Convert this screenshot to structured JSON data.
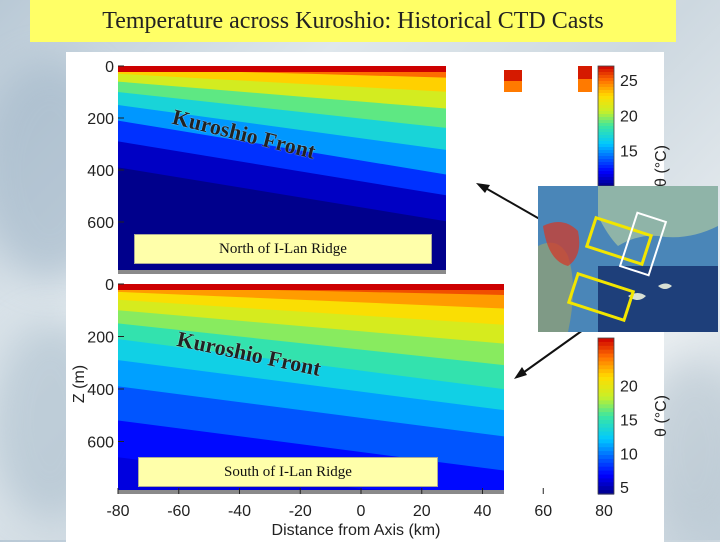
{
  "title": "Temperature across Kuroshio: Historical CTD Casts",
  "panels": {
    "north_label": "North of I-Lan Ridge",
    "south_label": "South of I-Lan Ridge",
    "front_label": "Kuroshio Front"
  },
  "colors": {
    "title_bg": "#ffff66",
    "banner_bg": "#ffffaa",
    "box_outline": "#f2e600"
  },
  "chart_data": [
    {
      "type": "heatmap",
      "panel": "North of I-Lan Ridge",
      "title": "",
      "xlabel": "",
      "ylabel": "",
      "xlim": [
        -80,
        80
      ],
      "ylim": [
        0,
        800
      ],
      "y_inverted": true,
      "y_ticks": [
        0,
        200,
        400,
        600
      ],
      "y_tick_labels": [
        "0",
        "200",
        "400",
        "600"
      ],
      "variable": "temperature",
      "colorbar": {
        "range": [
          10,
          27
        ],
        "ticks": [
          25,
          20,
          15
        ],
        "tick_labels": [
          "25",
          "20",
          "15"
        ],
        "label": "θ (°C)"
      },
      "isotherms": [
        {
          "temp": 26,
          "depth_at": [
            [
              -80,
              10
            ],
            [
              -40,
              20
            ],
            [
              0,
              30
            ],
            [
              40,
              40
            ],
            [
              80,
              50
            ]
          ]
        },
        {
          "temp": 24,
          "depth_at": [
            [
              -80,
              30
            ],
            [
              -40,
              50
            ],
            [
              0,
              70
            ],
            [
              40,
              90
            ],
            [
              80,
              110
            ]
          ]
        },
        {
          "temp": 22,
          "depth_at": [
            [
              -80,
              60
            ],
            [
              -40,
              90
            ],
            [
              0,
              120
            ],
            [
              40,
              150
            ],
            [
              80,
              180
            ]
          ]
        },
        {
          "temp": 20,
          "depth_at": [
            [
              -80,
              100
            ],
            [
              -40,
              140
            ],
            [
              0,
              180
            ],
            [
              40,
              220
            ],
            [
              80,
              260
            ]
          ]
        },
        {
          "temp": 18,
          "depth_at": [
            [
              -80,
              150
            ],
            [
              -40,
              200
            ],
            [
              0,
              250
            ],
            [
              40,
              300
            ],
            [
              80,
              350
            ]
          ]
        },
        {
          "temp": 16,
          "depth_at": [
            [
              -80,
              210
            ],
            [
              -40,
              270
            ],
            [
              0,
              330
            ],
            [
              40,
              390
            ],
            [
              80,
              450
            ]
          ]
        },
        {
          "temp": 14,
          "depth_at": [
            [
              -80,
              290
            ],
            [
              -40,
              350
            ],
            [
              0,
              410
            ],
            [
              40,
              470
            ],
            [
              80,
              530
            ]
          ]
        },
        {
          "temp": 12,
          "depth_at": [
            [
              -80,
              390
            ],
            [
              -40,
              450
            ],
            [
              0,
              510
            ],
            [
              40,
              570
            ],
            [
              80,
              630
            ]
          ]
        },
        {
          "temp": 10,
          "depth_at": [
            [
              -80,
              520
            ],
            [
              -40,
              580
            ],
            [
              0,
              640
            ],
            [
              40,
              700
            ],
            [
              80,
              760
            ]
          ]
        }
      ]
    },
    {
      "type": "heatmap",
      "panel": "South of I-Lan Ridge",
      "title": "",
      "xlabel": "Distance from Axis (km)",
      "ylabel": "Z (m)",
      "xlim": [
        -80,
        80
      ],
      "ylim": [
        0,
        800
      ],
      "y_inverted": true,
      "x_ticks": [
        -80,
        -60,
        -40,
        -20,
        0,
        20,
        40,
        60,
        80
      ],
      "x_tick_labels": [
        "-80",
        "-60",
        "-40",
        "-20",
        "0",
        "20",
        "40",
        "60",
        "80"
      ],
      "y_ticks": [
        0,
        200,
        400,
        600
      ],
      "y_tick_labels": [
        "0",
        "200",
        "400",
        "600"
      ],
      "variable": "temperature",
      "colorbar": {
        "range": [
          4,
          27
        ],
        "ticks": [
          20,
          15,
          10,
          5
        ],
        "tick_labels": [
          "20",
          "15",
          "10",
          "5"
        ],
        "label": "θ (°C)"
      },
      "isotherms": [
        {
          "temp": 26,
          "depth_at": [
            [
              -80,
              10
            ],
            [
              -40,
              20
            ],
            [
              0,
              30
            ],
            [
              40,
              40
            ],
            [
              80,
              50
            ]
          ]
        },
        {
          "temp": 24,
          "depth_at": [
            [
              -80,
              30
            ],
            [
              -40,
              50
            ],
            [
              0,
              70
            ],
            [
              40,
              90
            ],
            [
              80,
              110
            ]
          ]
        },
        {
          "temp": 22,
          "depth_at": [
            [
              -80,
              60
            ],
            [
              -40,
              90
            ],
            [
              0,
              120
            ],
            [
              40,
              150
            ],
            [
              80,
              180
            ]
          ]
        },
        {
          "temp": 20,
          "depth_at": [
            [
              -80,
              100
            ],
            [
              -40,
              140
            ],
            [
              0,
              180
            ],
            [
              40,
              220
            ],
            [
              80,
              260
            ]
          ]
        },
        {
          "temp": 18,
          "depth_at": [
            [
              -80,
              150
            ],
            [
              -40,
              200
            ],
            [
              0,
              250
            ],
            [
              40,
              300
            ],
            [
              80,
              350
            ]
          ]
        },
        {
          "temp": 16,
          "depth_at": [
            [
              -80,
              210
            ],
            [
              -40,
              270
            ],
            [
              0,
              330
            ],
            [
              40,
              390
            ],
            [
              80,
              450
            ]
          ]
        },
        {
          "temp": 14,
          "depth_at": [
            [
              -80,
              290
            ],
            [
              -40,
              350
            ],
            [
              0,
              410
            ],
            [
              40,
              470
            ],
            [
              80,
              530
            ]
          ]
        },
        {
          "temp": 12,
          "depth_at": [
            [
              -80,
              390
            ],
            [
              -40,
              450
            ],
            [
              0,
              510
            ],
            [
              40,
              570
            ],
            [
              80,
              630
            ]
          ]
        },
        {
          "temp": 10,
          "depth_at": [
            [
              -80,
              520
            ],
            [
              -40,
              580
            ],
            [
              0,
              640
            ],
            [
              40,
              700
            ],
            [
              80,
              760
            ]
          ]
        },
        {
          "temp": 8,
          "depth_at": [
            [
              -80,
              660
            ],
            [
              -40,
              720
            ],
            [
              0,
              780
            ],
            [
              40,
              800
            ],
            [
              80,
              800
            ]
          ]
        }
      ]
    }
  ],
  "inset_map": {
    "description_visible": false,
    "boxes": 2
  }
}
